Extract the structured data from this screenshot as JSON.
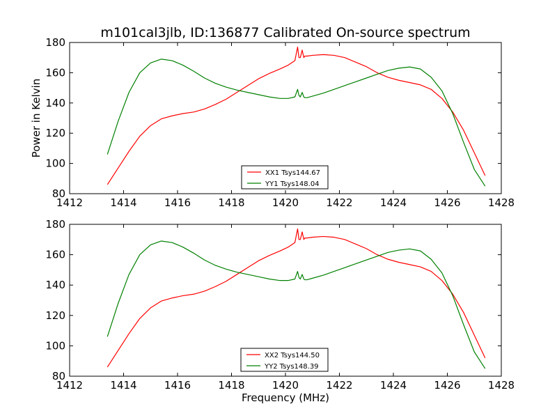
{
  "title": "m101cal3jlb, ID:136877 Calibrated On-source spectrum",
  "chart_data": [
    {
      "type": "line",
      "xlabel": "",
      "ylabel": "Power in Kelvin",
      "xlim": [
        1412,
        1428
      ],
      "ylim": [
        80,
        180
      ],
      "xticks": [
        1412,
        1414,
        1416,
        1418,
        1420,
        1422,
        1424,
        1426,
        1428
      ],
      "yticks": [
        80,
        100,
        120,
        140,
        160,
        180
      ],
      "legend_position": "lower-center",
      "series": [
        {
          "name": "XX1 Tsys144.67",
          "color": "#ff0000",
          "x": [
            1413.4,
            1413.8,
            1414.2,
            1414.6,
            1415.0,
            1415.4,
            1415.8,
            1416.2,
            1416.6,
            1417.0,
            1417.4,
            1417.8,
            1418.2,
            1418.6,
            1419.0,
            1419.4,
            1419.8,
            1420.1,
            1420.35,
            1420.45,
            1420.5,
            1420.55,
            1420.62,
            1420.68,
            1420.72,
            1420.8,
            1421.0,
            1421.4,
            1421.8,
            1422.2,
            1422.6,
            1423.0,
            1423.4,
            1423.8,
            1424.2,
            1424.6,
            1425.0,
            1425.4,
            1425.8,
            1426.2,
            1426.6,
            1427.0,
            1427.4
          ],
          "y": [
            86,
            97,
            108,
            118,
            125,
            129.5,
            131.5,
            133,
            134,
            136,
            139,
            142.5,
            147,
            151.5,
            156,
            159.5,
            162.5,
            165,
            168,
            177,
            170,
            170,
            175,
            170,
            171,
            171,
            171.5,
            172,
            171.5,
            170,
            167,
            164,
            160,
            157,
            155,
            153.5,
            152,
            149,
            143,
            134,
            122,
            107,
            92
          ]
        },
        {
          "name": "YY1 Tsys148.04",
          "color": "#008000",
          "x": [
            1413.4,
            1413.8,
            1414.2,
            1414.6,
            1415.0,
            1415.4,
            1415.8,
            1416.2,
            1416.6,
            1417.0,
            1417.4,
            1417.8,
            1418.2,
            1418.6,
            1419.0,
            1419.4,
            1419.8,
            1420.1,
            1420.35,
            1420.45,
            1420.5,
            1420.55,
            1420.62,
            1420.68,
            1420.72,
            1420.8,
            1421.0,
            1421.4,
            1421.8,
            1422.2,
            1422.6,
            1423.0,
            1423.4,
            1423.8,
            1424.2,
            1424.6,
            1425.0,
            1425.4,
            1425.8,
            1426.2,
            1426.6,
            1427.0,
            1427.4
          ],
          "y": [
            106,
            128,
            147,
            160,
            166.5,
            169,
            168,
            165,
            161,
            156.5,
            153,
            150.5,
            148.5,
            147,
            145.5,
            144,
            143,
            143,
            144,
            149,
            145,
            144,
            147,
            144,
            143.5,
            143.5,
            144.5,
            146.5,
            149,
            151.5,
            154,
            156.5,
            159,
            161.5,
            163,
            163.8,
            162.5,
            157,
            148,
            133,
            114,
            96,
            85
          ]
        }
      ]
    },
    {
      "type": "line",
      "xlabel": "Frequency (MHz)",
      "ylabel": "",
      "xlim": [
        1412,
        1428
      ],
      "ylim": [
        80,
        180
      ],
      "xticks": [
        1412,
        1414,
        1416,
        1418,
        1420,
        1422,
        1424,
        1426,
        1428
      ],
      "yticks": [
        80,
        100,
        120,
        140,
        160,
        180
      ],
      "legend_position": "lower-center",
      "series": [
        {
          "name": "XX2 Tsys144.50",
          "color": "#ff0000",
          "x": [
            1413.4,
            1413.8,
            1414.2,
            1414.6,
            1415.0,
            1415.4,
            1415.8,
            1416.2,
            1416.6,
            1417.0,
            1417.4,
            1417.8,
            1418.2,
            1418.6,
            1419.0,
            1419.4,
            1419.8,
            1420.1,
            1420.35,
            1420.45,
            1420.5,
            1420.55,
            1420.62,
            1420.68,
            1420.72,
            1420.8,
            1421.0,
            1421.4,
            1421.8,
            1422.2,
            1422.6,
            1423.0,
            1423.4,
            1423.8,
            1424.2,
            1424.6,
            1425.0,
            1425.4,
            1425.8,
            1426.2,
            1426.6,
            1427.0,
            1427.4
          ],
          "y": [
            86,
            97,
            108,
            118,
            125,
            129.5,
            131.5,
            133,
            134,
            136,
            139,
            142.5,
            147,
            151.5,
            156,
            159.5,
            162.5,
            165,
            168,
            177,
            170,
            170,
            175,
            170,
            171,
            171,
            171.5,
            172,
            171.5,
            170,
            167,
            164,
            160,
            157,
            155,
            153.5,
            152,
            149,
            143,
            134,
            122,
            107,
            92
          ]
        },
        {
          "name": "YY2 Tsys148.39",
          "color": "#008000",
          "x": [
            1413.4,
            1413.8,
            1414.2,
            1414.6,
            1415.0,
            1415.4,
            1415.8,
            1416.2,
            1416.6,
            1417.0,
            1417.4,
            1417.8,
            1418.2,
            1418.6,
            1419.0,
            1419.4,
            1419.8,
            1420.1,
            1420.35,
            1420.45,
            1420.5,
            1420.55,
            1420.62,
            1420.68,
            1420.72,
            1420.8,
            1421.0,
            1421.4,
            1421.8,
            1422.2,
            1422.6,
            1423.0,
            1423.4,
            1423.8,
            1424.2,
            1424.6,
            1425.0,
            1425.4,
            1425.8,
            1426.2,
            1426.6,
            1427.0,
            1427.4
          ],
          "y": [
            106,
            128,
            147,
            160,
            166.5,
            169,
            168,
            165,
            161,
            156.5,
            153,
            150.5,
            148.5,
            147,
            145.5,
            144,
            143,
            143,
            144,
            149,
            145,
            144,
            147,
            144,
            143.5,
            143.5,
            144.5,
            146.5,
            149,
            151.5,
            154,
            156.5,
            159,
            161.5,
            163,
            163.8,
            162.5,
            157,
            148,
            133,
            114,
            96,
            85
          ]
        }
      ]
    }
  ]
}
